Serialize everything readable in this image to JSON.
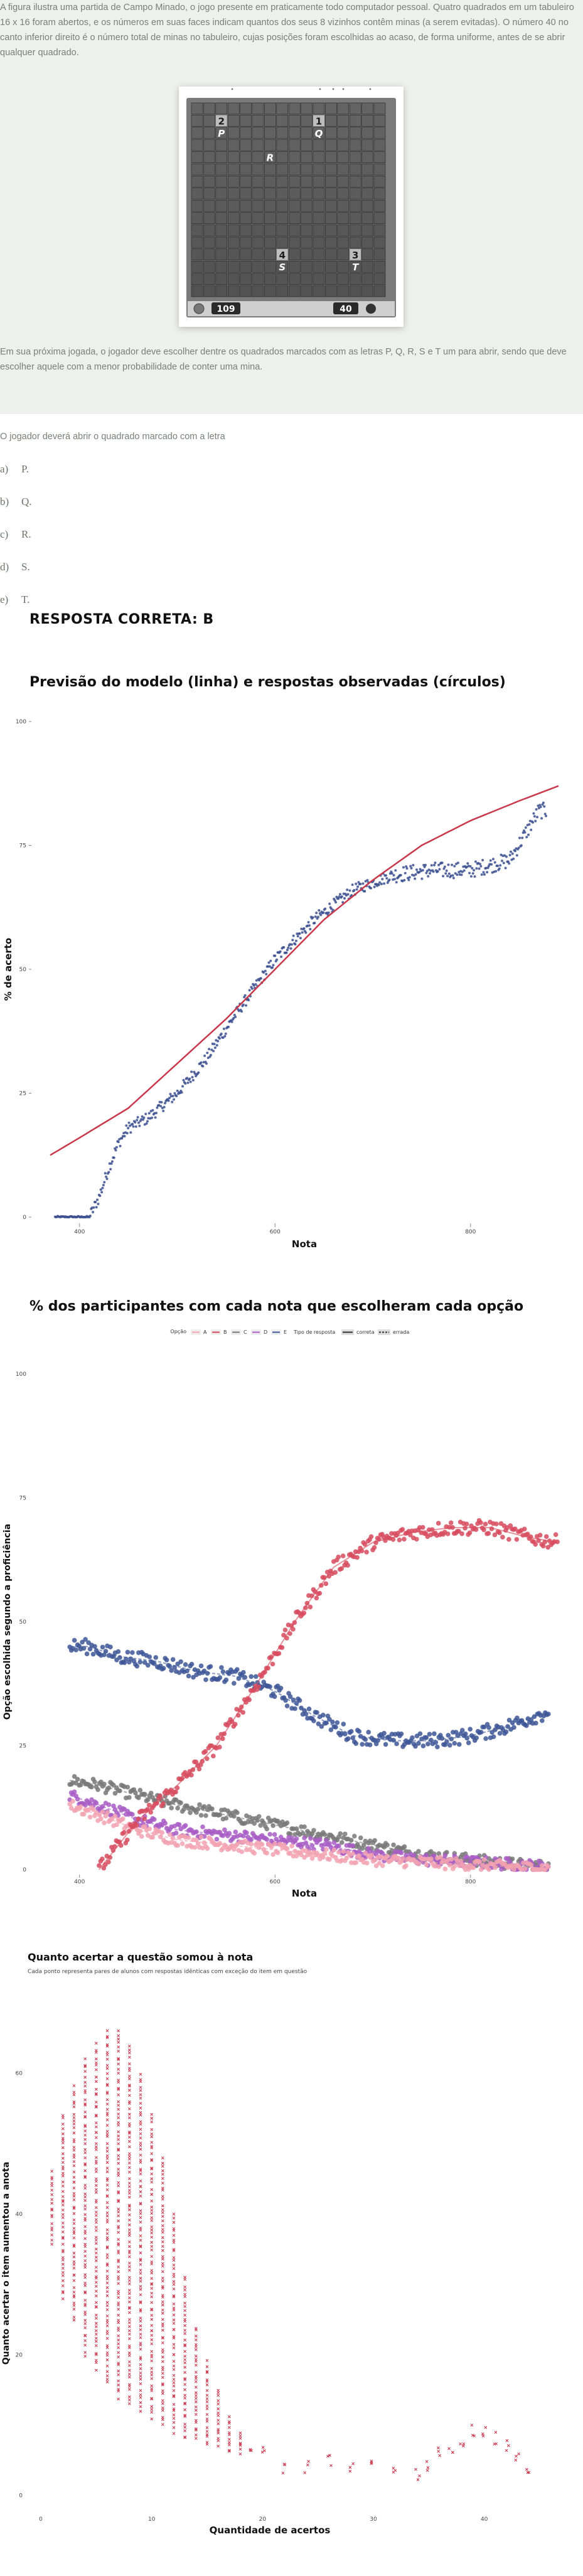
{
  "question": {
    "paragraph1": "A figura ilustra uma partida de Campo Minado, o jogo presente em praticamente todo computador pessoal. Quatro quadrados em um tabuleiro 16 x 16 foram abertos, e os números em suas faces indicam quantos dos seus 8 vizinhos contêm minas (a serem evitadas). O número 40 no canto inferior direito é o número total de minas no tabuleiro, cujas posições foram escolhidas ao acaso, de forma uniforme, antes de se abrir qualquer quadrado.",
    "paragraph2": "Em sua próxima jogada, o jogador deve escolher dentre os quadrados marcados com as letras P, Q, R, S e T um para abrir, sendo que deve escolher aquele com a menor probabilidade de conter uma mina.",
    "prompt": "O jogador deverá abrir o quadrado marcado com a letra",
    "options": [
      {
        "letter": "a)",
        "text": "P."
      },
      {
        "letter": "b)",
        "text": "Q."
      },
      {
        "letter": "c)",
        "text": "R."
      },
      {
        "letter": "d)",
        "text": "S."
      },
      {
        "letter": "e)",
        "text": "T."
      }
    ],
    "correct": "RESPOSTA CORRETA: B"
  },
  "minesweeper": {
    "timer": "109",
    "mines": "40",
    "cells": [
      {
        "text": "2",
        "kind": "number"
      },
      {
        "text": "P",
        "kind": "letter"
      },
      {
        "text": "1",
        "kind": "number"
      },
      {
        "text": "Q",
        "kind": "letter"
      },
      {
        "text": "R",
        "kind": "letter"
      },
      {
        "text": "3",
        "kind": "number"
      },
      {
        "text": "T",
        "kind": "letter"
      },
      {
        "text": "4",
        "kind": "number"
      },
      {
        "text": "S",
        "kind": "letter"
      }
    ]
  },
  "chart_data": [
    {
      "type": "line",
      "title": "Previsão do modelo (linha) e respostas observadas (círculos)",
      "xlabel": "Nota",
      "ylabel": "% de acerto",
      "xlim": [
        370,
        890
      ],
      "ylim": [
        0,
        100
      ],
      "xticks": [
        "400",
        "600",
        "800"
      ],
      "yticks": [
        "0",
        "25",
        "50",
        "75",
        "100"
      ],
      "colors": {
        "model": "#c8384a",
        "observed": "#3a4f8f"
      },
      "series": [
        {
          "kind": "line",
          "x": [
            370,
            400,
            450,
            500,
            550,
            600,
            650,
            700,
            750,
            800,
            850,
            890
          ],
          "y": [
            12.5,
            16,
            22,
            31,
            40,
            50,
            60,
            68,
            75,
            80,
            84,
            87
          ]
        },
        {
          "kind": "scatter",
          "x": [
            375,
            410,
            420,
            430,
            440,
            450,
            470,
            500,
            530,
            560,
            600,
            640,
            680,
            720,
            760,
            800,
            840,
            870
          ],
          "y": [
            0,
            0,
            4,
            10,
            15,
            18,
            20,
            25,
            32,
            41,
            52,
            60,
            66,
            69,
            70,
            70,
            72,
            82
          ]
        }
      ]
    },
    {
      "type": "line",
      "title": "% dos participantes com cada nota que escolheram cada opção",
      "xlabel": "Nota",
      "ylabel": "Opção escolhida segundo a proficiência",
      "xlim": [
        370,
        890
      ],
      "ylim": [
        0,
        100
      ],
      "xticks": [
        "400",
        "600",
        "800"
      ],
      "yticks": [
        "0",
        "25",
        "50",
        "75",
        "100"
      ],
      "legend": {
        "opcao_label": "Opção",
        "tipo_label": "Tipo de resposta",
        "correta": "correta",
        "errada": "errada"
      },
      "series": [
        {
          "name": "A",
          "color": "#f2a2b0",
          "x": [
            390,
            420,
            460,
            500,
            550,
            600,
            650,
            700,
            750,
            800,
            850,
            880
          ],
          "y": [
            13,
            11,
            8,
            6,
            5,
            4,
            3,
            2,
            1.5,
            1,
            0.5,
            0.3
          ]
        },
        {
          "name": "B",
          "color": "#d74b5e",
          "x": [
            420,
            440,
            460,
            500,
            540,
            580,
            620,
            660,
            700,
            740,
            780,
            820,
            860,
            890
          ],
          "y": [
            0,
            5,
            10,
            17,
            25,
            37,
            50,
            61,
            66,
            68,
            69,
            69,
            67,
            66
          ]
        },
        {
          "name": "C",
          "color": "#787878",
          "x": [
            390,
            420,
            460,
            500,
            550,
            600,
            650,
            700,
            750,
            800,
            850,
            880
          ],
          "y": [
            18,
            17,
            15,
            13,
            11,
            9,
            7,
            5,
            3,
            2,
            1,
            0.5
          ]
        },
        {
          "name": "D",
          "color": "#a85cc4",
          "x": [
            390,
            420,
            460,
            500,
            550,
            600,
            650,
            700,
            750,
            800,
            850,
            880
          ],
          "y": [
            15,
            13,
            10,
            8,
            7,
            6,
            5,
            3,
            2,
            1.5,
            1,
            0.5
          ]
        },
        {
          "name": "E",
          "color": "#3d5696",
          "x": [
            390,
            410,
            440,
            480,
            520,
            560,
            600,
            640,
            680,
            720,
            760,
            800,
            840,
            880
          ],
          "y": [
            45,
            45,
            43,
            42,
            40,
            39,
            36,
            31,
            27,
            26,
            26,
            27,
            29,
            32
          ]
        }
      ]
    },
    {
      "type": "scatter",
      "title": "Quanto acertar a questão somou à nota",
      "subtitle": "Cada ponto representa pares de alunos com respostas idênticas com exceção do item em questão",
      "xlabel": "Quantidade de acertos",
      "ylabel": "Quanto acertar o item aumentou a anota",
      "xlim": [
        0,
        45
      ],
      "ylim": [
        -2,
        68
      ],
      "xticks": [
        "0",
        "10",
        "20",
        "30",
        "40"
      ],
      "yticks": [
        "0",
        "20",
        "40",
        "60"
      ],
      "color": "#cc3c52",
      "columns": [
        {
          "x": 1,
          "lo": 36,
          "hi": 46
        },
        {
          "x": 2,
          "lo": 28,
          "hi": 54
        },
        {
          "x": 3,
          "lo": 25,
          "hi": 58
        },
        {
          "x": 4,
          "lo": 20,
          "hi": 62
        },
        {
          "x": 5,
          "lo": 18,
          "hi": 64
        },
        {
          "x": 6,
          "lo": 16,
          "hi": 66
        },
        {
          "x": 7,
          "lo": 14,
          "hi": 66
        },
        {
          "x": 8,
          "lo": 13,
          "hi": 64
        },
        {
          "x": 9,
          "lo": 12,
          "hi": 60
        },
        {
          "x": 10,
          "lo": 11,
          "hi": 54
        },
        {
          "x": 11,
          "lo": 10,
          "hi": 48
        },
        {
          "x": 12,
          "lo": 9,
          "hi": 40
        },
        {
          "x": 13,
          "lo": 8,
          "hi": 31
        },
        {
          "x": 14,
          "lo": 8,
          "hi": 24
        },
        {
          "x": 15,
          "lo": 7,
          "hi": 19
        },
        {
          "x": 16,
          "lo": 7,
          "hi": 15
        },
        {
          "x": 17,
          "lo": 6,
          "hi": 11
        },
        {
          "x": 18,
          "lo": 6,
          "hi": 9
        }
      ],
      "tail": {
        "x": [
          19,
          20,
          22,
          24,
          26,
          28,
          30,
          32,
          34,
          35,
          36,
          37,
          38,
          39,
          40,
          41,
          42,
          43,
          44
        ],
        "y": [
          7,
          6,
          4,
          4,
          5,
          4,
          4,
          3,
          3,
          4,
          6,
          7,
          8,
          9,
          9,
          8,
          7,
          5,
          4
        ]
      }
    }
  ]
}
